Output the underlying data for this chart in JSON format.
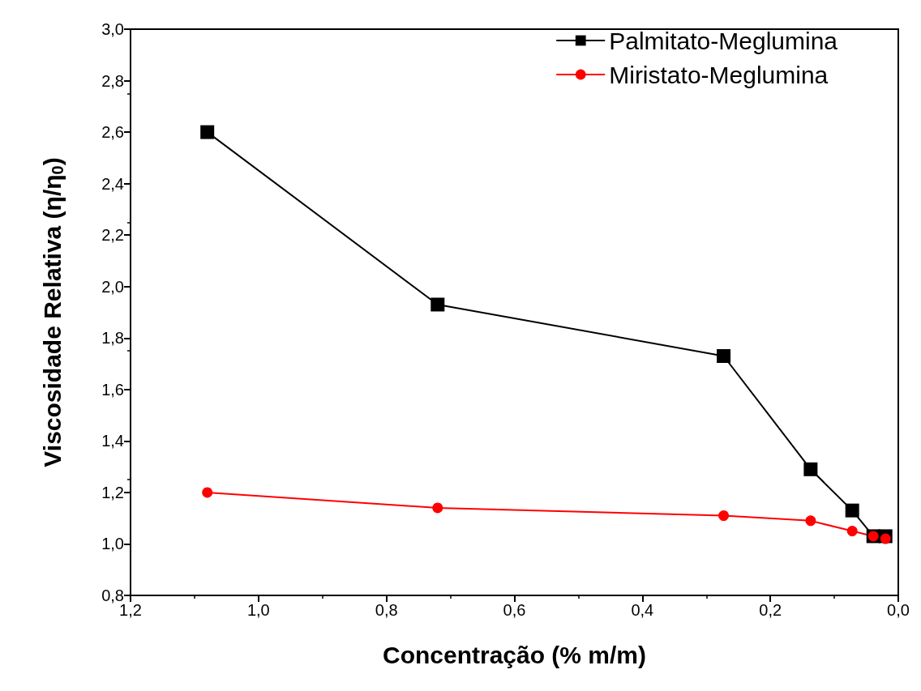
{
  "chart_data": {
    "type": "line",
    "xlabel": "Concentração (% m/m)",
    "ylabel": "Viscosidade Relativa (η/η$_{0}$)",
    "x": [
      1.08,
      0.72,
      0.273,
      0.137,
      0.072,
      0.039,
      0.02
    ],
    "series": [
      {
        "name": "Palmitato-Meglumina",
        "color": "#000000",
        "marker": "square",
        "values": [
          2.6,
          1.93,
          1.73,
          1.29,
          1.13,
          1.03,
          1.03
        ]
      },
      {
        "name": "Miristato-Meglumina",
        "color": "#ff0000",
        "marker": "circle",
        "values": [
          1.2,
          1.14,
          1.11,
          1.09,
          1.05,
          1.03,
          1.02
        ]
      }
    ],
    "xlim": [
      1.2,
      0.0
    ],
    "xticks": [
      {
        "value": 1.2,
        "label": "1,2"
      },
      {
        "value": 1.0,
        "label": "1,0"
      },
      {
        "value": 0.8,
        "label": "0,8"
      },
      {
        "value": 0.6,
        "label": "0,6"
      },
      {
        "value": 0.4,
        "label": "0,4"
      },
      {
        "value": 0.2,
        "label": "0,2"
      },
      {
        "value": 0.0,
        "label": "0,0"
      }
    ],
    "ylim": [
      0.8,
      3.0
    ],
    "yticks": [
      {
        "value": 0.8,
        "label": "0,8"
      },
      {
        "value": 1.0,
        "label": "1,0"
      },
      {
        "value": 1.2,
        "label": "1,2"
      },
      {
        "value": 1.4,
        "label": "1,4"
      },
      {
        "value": 1.6,
        "label": "1,6"
      },
      {
        "value": 1.8,
        "label": "1,8"
      },
      {
        "value": 2.0,
        "label": "2,0"
      },
      {
        "value": 2.2,
        "label": "2,2"
      },
      {
        "value": 2.4,
        "label": "2,4"
      },
      {
        "value": 2.6,
        "label": "2,6"
      },
      {
        "value": 2.8,
        "label": "2,8"
      },
      {
        "value": 3.0,
        "label": "3,0"
      }
    ],
    "grid": false,
    "legend": "top right",
    "line_style": "solid"
  }
}
